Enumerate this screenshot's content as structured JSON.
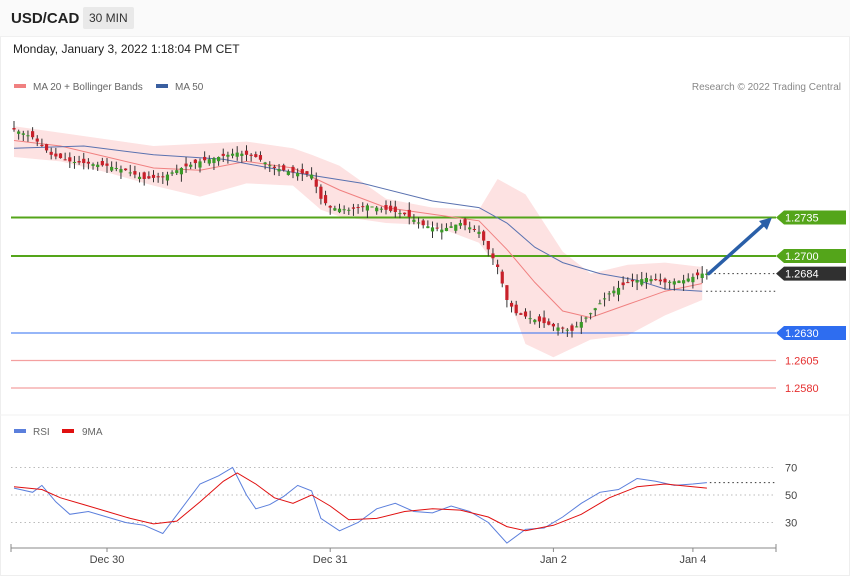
{
  "header": {
    "symbol": "USD/CAD",
    "timeframe": "30 MIN",
    "datetime": "Monday, January 3, 2022 1:18:04 PM CET"
  },
  "legend": {
    "items": [
      {
        "label": "MA 20 + Bollinger Bands",
        "color": "#f08080"
      },
      {
        "label": "MA 50",
        "color": "#3a5fa0"
      }
    ],
    "credit": "Research © 2022 Trading Central"
  },
  "rsi_legend": {
    "items": [
      {
        "label": "RSI",
        "color": "#5b7fdc"
      },
      {
        "label": "9MA",
        "color": "#e01010"
      }
    ]
  },
  "chart_data": [
    {
      "type": "candlestick",
      "title": "USD/CAD 30 MIN",
      "ylim": [
        1.256,
        1.284
      ],
      "x_ticks": [
        {
          "label": "Dec 30",
          "index": 20
        },
        {
          "label": "Dec 31",
          "index": 68
        },
        {
          "label": "Jan 2",
          "index": 116
        },
        {
          "label": "Jan 4",
          "index": 146
        }
      ],
      "candle_count": 150,
      "path": [
        [
          0,
          1.2815
        ],
        [
          4,
          1.2808
        ],
        [
          8,
          1.2792
        ],
        [
          12,
          1.2786
        ],
        [
          16,
          1.2784
        ],
        [
          20,
          1.2782
        ],
        [
          24,
          1.2778
        ],
        [
          28,
          1.277
        ],
        [
          32,
          1.2772
        ],
        [
          36,
          1.278
        ],
        [
          40,
          1.2786
        ],
        [
          44,
          1.279
        ],
        [
          48,
          1.2794
        ],
        [
          52,
          1.279
        ],
        [
          56,
          1.278
        ],
        [
          60,
          1.2776
        ],
        [
          64,
          1.2774
        ],
        [
          66,
          1.2752
        ],
        [
          68,
          1.2744
        ],
        [
          72,
          1.2742
        ],
        [
          76,
          1.2746
        ],
        [
          80,
          1.2742
        ],
        [
          84,
          1.2738
        ],
        [
          88,
          1.2728
        ],
        [
          92,
          1.2724
        ],
        [
          96,
          1.273
        ],
        [
          100,
          1.2722
        ],
        [
          104,
          1.269
        ],
        [
          106,
          1.266
        ],
        [
          108,
          1.2648
        ],
        [
          112,
          1.2642
        ],
        [
          116,
          1.2636
        ],
        [
          120,
          1.2632
        ],
        [
          124,
          1.2648
        ],
        [
          128,
          1.2666
        ],
        [
          132,
          1.2676
        ],
        [
          136,
          1.268
        ],
        [
          140,
          1.2676
        ],
        [
          144,
          1.2678
        ],
        [
          148,
          1.2684
        ]
      ],
      "ma20_bollinger": {
        "name": "MA 20 + Bollinger Bands",
        "mid": [
          [
            0,
            1.2805
          ],
          [
            10,
            1.28
          ],
          [
            20,
            1.279
          ],
          [
            30,
            1.278
          ],
          [
            40,
            1.2778
          ],
          [
            50,
            1.2786
          ],
          [
            60,
            1.278
          ],
          [
            70,
            1.276
          ],
          [
            80,
            1.2744
          ],
          [
            90,
            1.2738
          ],
          [
            100,
            1.2732
          ],
          [
            106,
            1.2706
          ],
          [
            112,
            1.2676
          ],
          [
            118,
            1.265
          ],
          [
            124,
            1.2644
          ],
          [
            132,
            1.2656
          ],
          [
            140,
            1.2668
          ],
          [
            148,
            1.2675
          ]
        ],
        "upper": [
          [
            0,
            1.2818
          ],
          [
            10,
            1.2812
          ],
          [
            20,
            1.2806
          ],
          [
            30,
            1.28
          ],
          [
            40,
            1.2802
          ],
          [
            50,
            1.2804
          ],
          [
            60,
            1.2798
          ],
          [
            64,
            1.2792
          ],
          [
            70,
            1.2782
          ],
          [
            80,
            1.2752
          ],
          [
            90,
            1.2744
          ],
          [
            100,
            1.2742
          ],
          [
            104,
            1.277
          ],
          [
            110,
            1.2756
          ],
          [
            118,
            1.2704
          ],
          [
            124,
            1.2684
          ],
          [
            132,
            1.2692
          ],
          [
            140,
            1.2694
          ],
          [
            148,
            1.269
          ]
        ],
        "lower": [
          [
            0,
            1.279
          ],
          [
            10,
            1.2786
          ],
          [
            20,
            1.2776
          ],
          [
            30,
            1.2764
          ],
          [
            40,
            1.2754
          ],
          [
            50,
            1.2766
          ],
          [
            60,
            1.2764
          ],
          [
            66,
            1.2742
          ],
          [
            70,
            1.2736
          ],
          [
            80,
            1.273
          ],
          [
            90,
            1.2728
          ],
          [
            100,
            1.2712
          ],
          [
            104,
            1.269
          ],
          [
            110,
            1.262
          ],
          [
            116,
            1.2608
          ],
          [
            124,
            1.2624
          ],
          [
            132,
            1.2628
          ],
          [
            140,
            1.2646
          ],
          [
            148,
            1.266
          ]
        ]
      },
      "ma50": {
        "name": "MA 50",
        "points": [
          [
            0,
            1.2798
          ],
          [
            15,
            1.28
          ],
          [
            30,
            1.2792
          ],
          [
            45,
            1.2788
          ],
          [
            60,
            1.2776
          ],
          [
            75,
            1.2766
          ],
          [
            90,
            1.275
          ],
          [
            100,
            1.2744
          ],
          [
            106,
            1.273
          ],
          [
            112,
            1.2708
          ],
          [
            118,
            1.2694
          ],
          [
            126,
            1.2684
          ],
          [
            134,
            1.2678
          ],
          [
            140,
            1.267
          ],
          [
            148,
            1.2668
          ]
        ]
      },
      "levels": [
        {
          "value": "1.2735",
          "price": 1.2735,
          "kind": "resistance",
          "color": "#54a51a"
        },
        {
          "value": "1.2700",
          "price": 1.27,
          "kind": "resistance",
          "color": "#54a51a"
        },
        {
          "value": "1.2684",
          "price": 1.2684,
          "kind": "last",
          "color": "#303030"
        },
        {
          "value": "1.2630",
          "price": 1.263,
          "kind": "pivot",
          "color": "#2e6df0"
        },
        {
          "value": "1.2605",
          "price": 1.2605,
          "kind": "support",
          "color": "#e53030"
        },
        {
          "value": "1.2580",
          "price": 1.258,
          "kind": "support",
          "color": "#e53030"
        }
      ],
      "forecast_arrow": {
        "from": [
          149,
          1.2684
        ],
        "to": [
          163,
          1.2735
        ],
        "color": "#2a5fa8"
      }
    },
    {
      "type": "line",
      "title": "RSI",
      "ylim": [
        10,
        90
      ],
      "y_ticks": [
        "70",
        "50",
        "30"
      ],
      "series": [
        {
          "name": "RSI",
          "color": "#5b7fdc",
          "points": [
            [
              0,
              55
            ],
            [
              4,
              52
            ],
            [
              6,
              57
            ],
            [
              9,
              45
            ],
            [
              12,
              36
            ],
            [
              16,
              38
            ],
            [
              20,
              34
            ],
            [
              24,
              30
            ],
            [
              28,
              28
            ],
            [
              32,
              22
            ],
            [
              36,
              40
            ],
            [
              40,
              58
            ],
            [
              44,
              64
            ],
            [
              47,
              70
            ],
            [
              50,
              50
            ],
            [
              52,
              40
            ],
            [
              55,
              43
            ],
            [
              58,
              49
            ],
            [
              61,
              57
            ],
            [
              64,
              53
            ],
            [
              66,
              33
            ],
            [
              70,
              24
            ],
            [
              74,
              30
            ],
            [
              78,
              40
            ],
            [
              82,
              44
            ],
            [
              86,
              38
            ],
            [
              90,
              37
            ],
            [
              94,
              42
            ],
            [
              98,
              38
            ],
            [
              102,
              30
            ],
            [
              106,
              15
            ],
            [
              110,
              25
            ],
            [
              114,
              26
            ],
            [
              118,
              34
            ],
            [
              122,
              44
            ],
            [
              126,
              52
            ],
            [
              130,
              54
            ],
            [
              134,
              62
            ],
            [
              138,
              60
            ],
            [
              142,
              57
            ],
            [
              146,
              58
            ],
            [
              149,
              59
            ]
          ]
        },
        {
          "name": "9MA",
          "color": "#e01010",
          "points": [
            [
              0,
              56
            ],
            [
              6,
              54
            ],
            [
              10,
              48
            ],
            [
              15,
              43
            ],
            [
              20,
              38
            ],
            [
              25,
              33
            ],
            [
              30,
              29
            ],
            [
              35,
              31
            ],
            [
              40,
              45
            ],
            [
              45,
              60
            ],
            [
              48,
              66
            ],
            [
              52,
              58
            ],
            [
              56,
              48
            ],
            [
              60,
              44
            ],
            [
              64,
              50
            ],
            [
              68,
              42
            ],
            [
              72,
              32
            ],
            [
              78,
              33
            ],
            [
              84,
              38
            ],
            [
              90,
              40
            ],
            [
              96,
              39
            ],
            [
              102,
              34
            ],
            [
              106,
              27
            ],
            [
              110,
              24
            ],
            [
              116,
              28
            ],
            [
              122,
              36
            ],
            [
              128,
              48
            ],
            [
              134,
              56
            ],
            [
              140,
              58
            ],
            [
              146,
              56
            ],
            [
              149,
              55
            ]
          ]
        }
      ]
    }
  ]
}
